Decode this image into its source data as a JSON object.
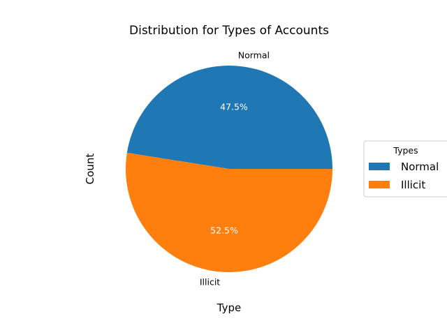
{
  "chart_data": {
    "type": "pie",
    "title": "Distribution for Types of Accounts",
    "xlabel": "Type",
    "ylabel": "Count",
    "categories": [
      "Normal",
      "Illicit"
    ],
    "values": [
      47.5,
      52.5
    ],
    "percent_labels": [
      "47.5%",
      "52.5%"
    ],
    "colors": [
      "#1f77b4",
      "#ff7f0e"
    ],
    "legend": {
      "title": "Types",
      "entries": [
        "Normal",
        "Illicit"
      ],
      "placement": "center-right"
    }
  }
}
